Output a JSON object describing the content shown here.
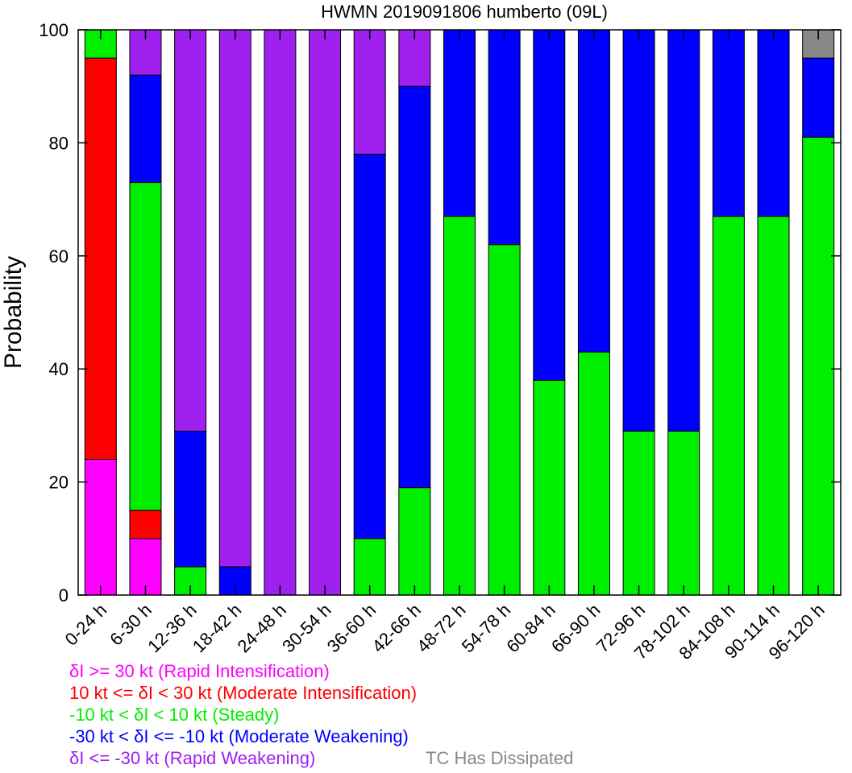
{
  "chart_data": {
    "type": "bar",
    "stacked": true,
    "title": "HWMN 2019091806 humberto (09L)",
    "xlabel": "",
    "ylabel": "Probability",
    "ylim": [
      0,
      100
    ],
    "yticks": [
      0,
      20,
      40,
      60,
      80,
      100
    ],
    "grid": false,
    "categories": [
      "0-24 h",
      "6-30 h",
      "12-36 h",
      "18-42 h",
      "24-48 h",
      "30-54 h",
      "36-60 h",
      "42-66 h",
      "48-72 h",
      "54-78 h",
      "60-84 h",
      "66-90 h",
      "72-96 h",
      "78-102 h",
      "84-108 h",
      "90-114 h",
      "96-120 h"
    ],
    "series": [
      {
        "name": "δI >= 30 kt (Rapid Intensification)",
        "color": "#ff00ff",
        "values": [
          24,
          10,
          0,
          0,
          0,
          0,
          0,
          0,
          0,
          0,
          0,
          0,
          0,
          0,
          0,
          0,
          0
        ]
      },
      {
        "name": "10 kt <= δI < 30 kt (Moderate Intensification)",
        "color": "#ff0000",
        "values": [
          71,
          5,
          0,
          0,
          0,
          0,
          0,
          0,
          0,
          0,
          0,
          0,
          0,
          0,
          0,
          0,
          0
        ]
      },
      {
        "name": "-10 kt < δI < 10 kt (Steady)",
        "color": "#00ee00",
        "values": [
          5,
          58,
          5,
          0,
          0,
          0,
          10,
          19,
          67,
          62,
          38,
          43,
          29,
          29,
          67,
          67,
          81
        ]
      },
      {
        "name": "-30 kt < δI <= -10 kt (Moderate Weakening)",
        "color": "#0000ff",
        "values": [
          0,
          19,
          24,
          5,
          0,
          0,
          68,
          71,
          33,
          38,
          62,
          57,
          71,
          71,
          33,
          33,
          14
        ]
      },
      {
        "name": "δI <= -30 kt (Rapid Weakening)",
        "color": "#a020f0",
        "values": [
          0,
          8,
          71,
          95,
          100,
          100,
          22,
          10,
          0,
          0,
          0,
          0,
          0,
          0,
          0,
          0,
          0
        ]
      },
      {
        "name": "TC Has Dissipated",
        "color": "#888888",
        "values": [
          0,
          0,
          0,
          0,
          0,
          0,
          0,
          0,
          0,
          0,
          0,
          0,
          0,
          0,
          0,
          0,
          5
        ]
      }
    ]
  },
  "legend": {
    "ri": "δI >= 30 kt (Rapid Intensification)",
    "mi": "10 kt <= δI < 30 kt (Moderate Intensification)",
    "steady": "-10 kt < δI < 10 kt (Steady)",
    "mw": "-30 kt < δI <= -10 kt (Moderate Weakening)",
    "rw": "δI <= -30 kt (Rapid Weakening)",
    "dissipated": "TC Has Dissipated"
  }
}
